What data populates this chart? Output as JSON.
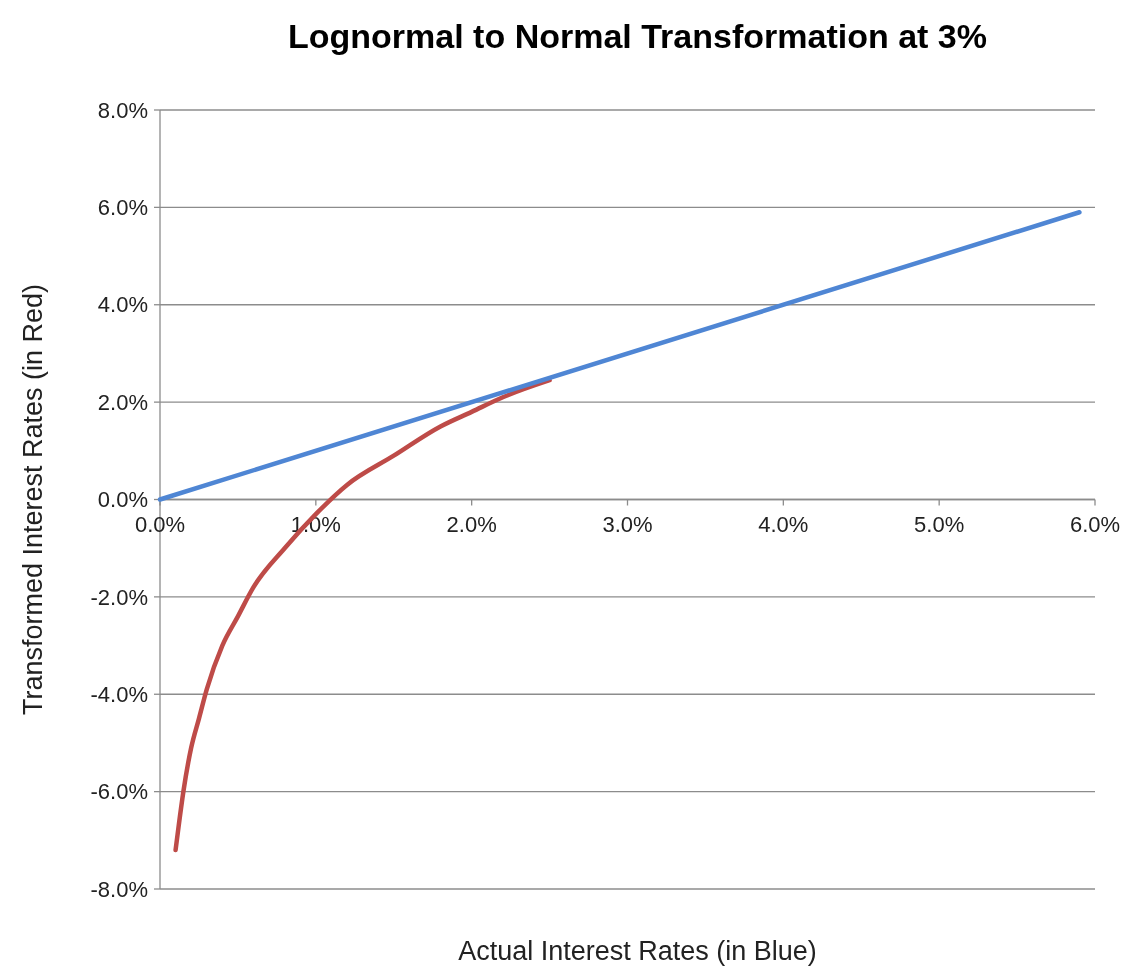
{
  "chart_data": {
    "type": "line",
    "title": "Lognormal to Normal Transformation at 3%",
    "xlabel": "Actual Interest Rates (in Blue)",
    "ylabel": "Transformed Interest Rates (in Red)",
    "xlim": [
      0,
      6
    ],
    "ylim": [
      -8,
      8
    ],
    "xticks": [
      {
        "value": 0,
        "label": "0.0%"
      },
      {
        "value": 1,
        "label": "1.0%"
      },
      {
        "value": 2,
        "label": "2.0%"
      },
      {
        "value": 3,
        "label": "3.0%"
      },
      {
        "value": 4,
        "label": "4.0%"
      },
      {
        "value": 5,
        "label": "5.0%"
      },
      {
        "value": 6,
        "label": "6.0%"
      }
    ],
    "yticks": [
      {
        "value": -8,
        "label": "-8.0%"
      },
      {
        "value": -6,
        "label": "-6.0%"
      },
      {
        "value": -4,
        "label": "-4.0%"
      },
      {
        "value": -2,
        "label": "-2.0%"
      },
      {
        "value": 0,
        "label": "0.0%"
      },
      {
        "value": 2,
        "label": "2.0%"
      },
      {
        "value": 4,
        "label": "4.0%"
      },
      {
        "value": 6,
        "label": "6.0%"
      },
      {
        "value": 8,
        "label": "8.0%"
      }
    ],
    "grid": "y",
    "marker": "none",
    "series": [
      {
        "color": "#be4b48",
        "x": [
          0.1,
          0.12,
          0.15,
          0.2,
          0.25,
          0.3,
          0.4,
          0.5,
          0.6,
          0.8,
          1.0,
          1.2,
          1.5,
          1.8,
          2.0,
          2.2,
          2.5
        ],
        "values": [
          -7.2,
          -6.7,
          -6.0,
          -5.1,
          -4.5,
          -3.9,
          -3.0,
          -2.4,
          -1.8,
          -1.0,
          -0.3,
          0.3,
          0.9,
          1.5,
          1.8,
          2.1,
          2.45
        ]
      },
      {
        "color": "#4f86d4",
        "x": [
          0,
          5.9
        ],
        "values": [
          0,
          5.9
        ]
      }
    ]
  }
}
